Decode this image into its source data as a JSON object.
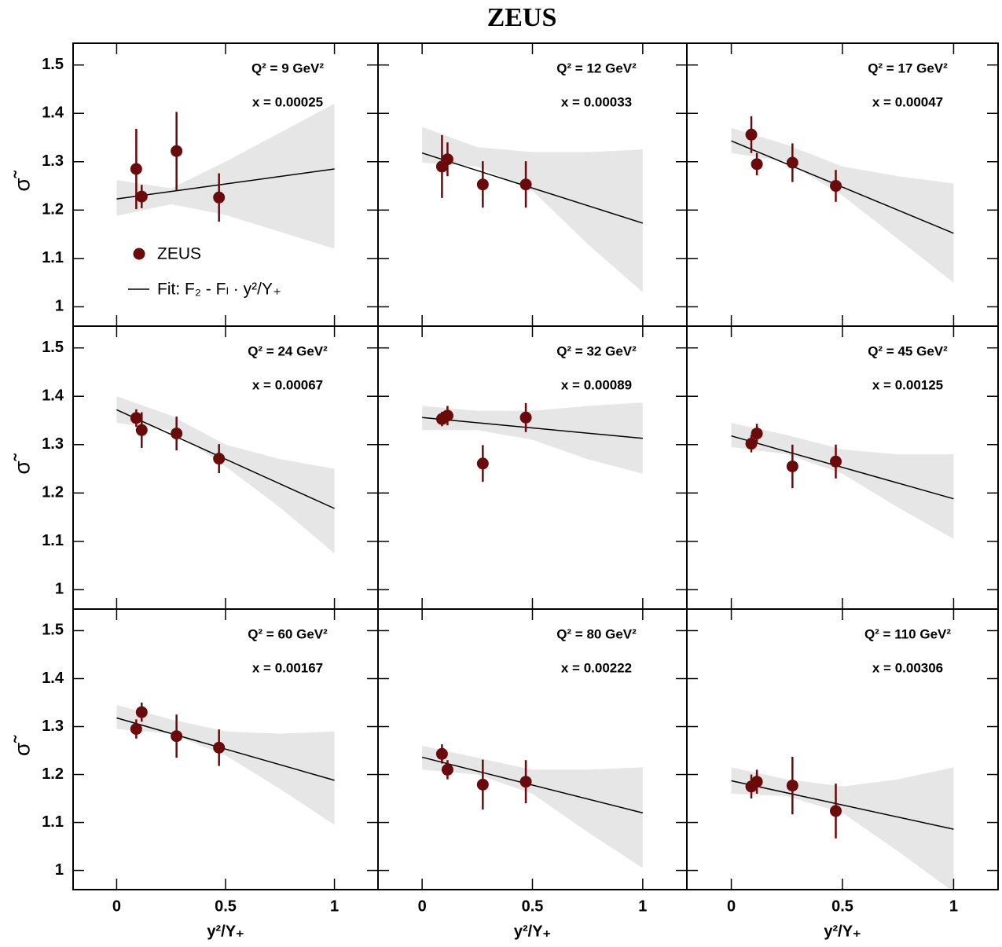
{
  "title": "ZEUS",
  "xlabel": "y²/Y₊",
  "ylabel": "σ̃",
  "legend": {
    "points": "ZEUS",
    "fit": "Fit: F₂ - Fₗ · y²/Y₊"
  },
  "axes": {
    "xlim": [
      -0.2,
      1.2
    ],
    "ylim": [
      0.96,
      1.545
    ],
    "xticks": [
      0,
      0.5,
      1
    ],
    "yticks": [
      1,
      1.1,
      1.2,
      1.3,
      1.4,
      1.5
    ]
  },
  "chart_data": [
    {
      "type": "scatter",
      "annotations": [
        "Q² = 9 GeV²",
        "x = 0.00025"
      ],
      "points": {
        "color": "#6b0a0a",
        "x": [
          0.09,
          0.115,
          0.275,
          0.47
        ],
        "values": [
          1.285,
          1.228,
          1.322,
          1.226
        ],
        "errors": [
          0.083,
          0.024,
          0.081,
          0.05
        ]
      },
      "fit": {
        "color": "#000000",
        "x": [
          0,
          1
        ],
        "values": [
          1.223,
          1.285
        ]
      },
      "band": {
        "color": "#e6e6e6",
        "x": [
          0,
          0.25,
          0.5,
          0.75,
          1
        ],
        "low": [
          1.188,
          1.212,
          1.19,
          1.155,
          1.12
        ],
        "high": [
          1.262,
          1.245,
          1.3,
          1.36,
          1.42
        ]
      }
    },
    {
      "type": "scatter",
      "annotations": [
        "Q² = 12 GeV²",
        "x = 0.00033"
      ],
      "points": {
        "color": "#6b0a0a",
        "x": [
          0.09,
          0.115,
          0.275,
          0.47
        ],
        "values": [
          1.29,
          1.305,
          1.253,
          1.253
        ],
        "errors": [
          0.065,
          0.035,
          0.048,
          0.048
        ]
      },
      "fit": {
        "color": "#000000",
        "x": [
          0,
          1
        ],
        "values": [
          1.318,
          1.173
        ]
      },
      "band": {
        "color": "#e6e6e6",
        "x": [
          0,
          0.25,
          0.5,
          0.75,
          1
        ],
        "low": [
          1.298,
          1.29,
          1.24,
          1.13,
          1.03
        ],
        "high": [
          1.372,
          1.33,
          1.32,
          1.32,
          1.325
        ]
      }
    },
    {
      "type": "scatter",
      "annotations": [
        "Q² = 17 GeV²",
        "x = 0.00047"
      ],
      "points": {
        "color": "#6b0a0a",
        "x": [
          0.09,
          0.115,
          0.275,
          0.47
        ],
        "values": [
          1.356,
          1.295,
          1.298,
          1.25
        ],
        "errors": [
          0.038,
          0.023,
          0.04,
          0.033
        ]
      },
      "fit": {
        "color": "#000000",
        "x": [
          0,
          1
        ],
        "values": [
          1.343,
          1.152
        ]
      },
      "band": {
        "color": "#e6e6e6",
        "x": [
          0,
          0.25,
          0.5,
          0.75,
          1
        ],
        "low": [
          1.318,
          1.3,
          1.23,
          1.14,
          1.05
        ],
        "high": [
          1.37,
          1.335,
          1.29,
          1.27,
          1.255
        ]
      }
    },
    {
      "type": "scatter",
      "annotations": [
        "Q² = 24 GeV²",
        "x = 0.00067"
      ],
      "points": {
        "color": "#6b0a0a",
        "x": [
          0.09,
          0.115,
          0.275,
          0.47
        ],
        "values": [
          1.355,
          1.33,
          1.323,
          1.271
        ],
        "errors": [
          0.018,
          0.037,
          0.035,
          0.03
        ]
      },
      "fit": {
        "color": "#000000",
        "x": [
          0,
          1
        ],
        "values": [
          1.372,
          1.168
        ]
      },
      "band": {
        "color": "#e6e6e6",
        "x": [
          0,
          0.25,
          0.5,
          0.75,
          1
        ],
        "low": [
          1.345,
          1.33,
          1.255,
          1.17,
          1.075
        ],
        "high": [
          1.4,
          1.36,
          1.3,
          1.27,
          1.25
        ]
      }
    },
    {
      "type": "scatter",
      "annotations": [
        "Q² = 32 GeV²",
        "x = 0.00089"
      ],
      "points": {
        "color": "#6b0a0a",
        "x": [
          0.09,
          0.115,
          0.275,
          0.47
        ],
        "values": [
          1.353,
          1.36,
          1.261,
          1.356
        ],
        "errors": [
          0.015,
          0.02,
          0.038,
          0.03
        ]
      },
      "fit": {
        "color": "#000000",
        "x": [
          0,
          1
        ],
        "values": [
          1.356,
          1.313
        ]
      },
      "band": {
        "color": "#e6e6e6",
        "x": [
          0,
          0.25,
          0.5,
          0.75,
          1
        ],
        "low": [
          1.33,
          1.33,
          1.31,
          1.27,
          1.24
        ],
        "high": [
          1.38,
          1.37,
          1.37,
          1.38,
          1.387
        ]
      }
    },
    {
      "type": "scatter",
      "annotations": [
        "Q² = 45 GeV²",
        "x = 0.00125"
      ],
      "points": {
        "color": "#6b0a0a",
        "x": [
          0.09,
          0.115,
          0.275,
          0.47
        ],
        "values": [
          1.302,
          1.323,
          1.255,
          1.265
        ],
        "errors": [
          0.018,
          0.02,
          0.045,
          0.035
        ]
      },
      "fit": {
        "color": "#000000",
        "x": [
          0,
          1
        ],
        "values": [
          1.318,
          1.188
        ]
      },
      "band": {
        "color": "#e6e6e6",
        "x": [
          0,
          0.25,
          0.5,
          0.75,
          1
        ],
        "low": [
          1.295,
          1.28,
          1.24,
          1.17,
          1.105
        ],
        "high": [
          1.345,
          1.32,
          1.29,
          1.28,
          1.28
        ]
      }
    },
    {
      "type": "scatter",
      "annotations": [
        "Q² = 60 GeV²",
        "x = 0.00167"
      ],
      "points": {
        "color": "#6b0a0a",
        "x": [
          0.09,
          0.115,
          0.275,
          0.47
        ],
        "values": [
          1.295,
          1.33,
          1.28,
          1.256
        ],
        "errors": [
          0.02,
          0.02,
          0.045,
          0.038
        ]
      },
      "fit": {
        "color": "#000000",
        "x": [
          0,
          1
        ],
        "values": [
          1.318,
          1.188
        ]
      },
      "band": {
        "color": "#e6e6e6",
        "x": [
          0,
          0.25,
          0.5,
          0.75,
          1
        ],
        "low": [
          1.295,
          1.285,
          1.24,
          1.17,
          1.095
        ],
        "high": [
          1.345,
          1.315,
          1.29,
          1.285,
          1.29
        ]
      }
    },
    {
      "type": "scatter",
      "annotations": [
        "Q² = 80 GeV²",
        "x = 0.00222"
      ],
      "points": {
        "color": "#6b0a0a",
        "x": [
          0.09,
          0.115,
          0.275,
          0.47
        ],
        "values": [
          1.243,
          1.21,
          1.179,
          1.185
        ],
        "errors": [
          0.02,
          0.02,
          0.052,
          0.045
        ]
      },
      "fit": {
        "color": "#000000",
        "x": [
          0,
          1
        ],
        "values": [
          1.236,
          1.12
        ]
      },
      "band": {
        "color": "#e6e6e6",
        "x": [
          0,
          0.25,
          0.5,
          0.75,
          1
        ],
        "low": [
          1.21,
          1.2,
          1.16,
          1.08,
          1.005
        ],
        "high": [
          1.26,
          1.235,
          1.21,
          1.21,
          1.215
        ]
      }
    },
    {
      "type": "scatter",
      "annotations": [
        "Q² = 110 GeV²",
        "x = 0.00306"
      ],
      "points": {
        "color": "#6b0a0a",
        "x": [
          0.09,
          0.115,
          0.275,
          0.47
        ],
        "values": [
          1.175,
          1.185,
          1.177,
          1.124
        ],
        "errors": [
          0.025,
          0.025,
          0.06,
          0.057
        ]
      },
      "fit": {
        "color": "#000000",
        "x": [
          0,
          1
        ],
        "values": [
          1.187,
          1.086
        ]
      },
      "band": {
        "color": "#e6e6e6",
        "x": [
          0,
          0.25,
          0.5,
          0.75,
          1
        ],
        "low": [
          1.16,
          1.155,
          1.12,
          1.04,
          0.955
        ],
        "high": [
          1.215,
          1.19,
          1.175,
          1.19,
          1.215
        ]
      }
    }
  ]
}
